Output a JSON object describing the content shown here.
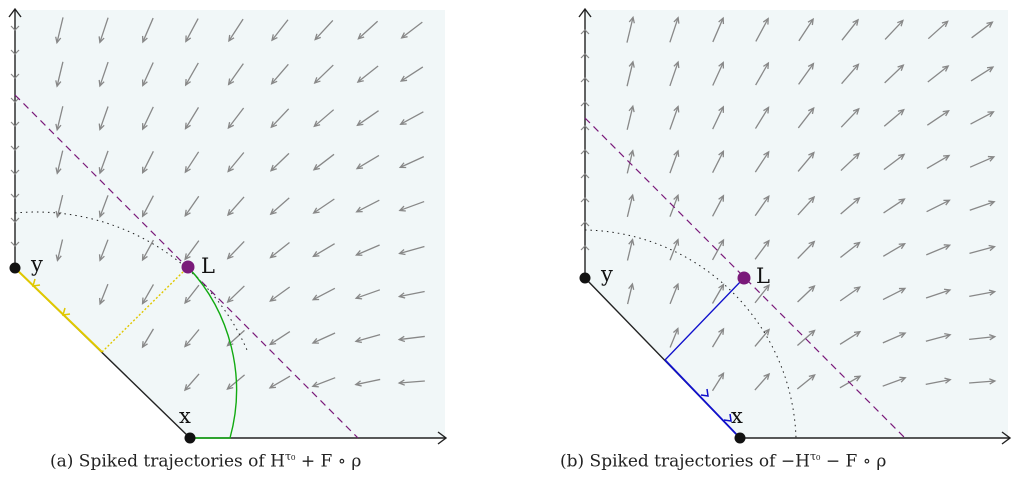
{
  "figures": [
    {
      "id": "a",
      "caption_prefix": "(a) Spiked trajectories of H",
      "caption_sup": "τ₀",
      "caption_suffix": " + F ∘ ρ",
      "labels": {
        "y": "y",
        "x": "x",
        "L": "L"
      },
      "field_direction": "down-left",
      "colors": {
        "trajectory_top": "#e0c800",
        "trajectory_bottom": "#11aa11",
        "point": "#7a1a7a",
        "dashed": "#7a1a7a",
        "arrow": "#888888",
        "bg": "#f1f7f8"
      }
    },
    {
      "id": "b",
      "caption_prefix": "(b) Spiked trajectories of −H",
      "caption_sup": "τ₀",
      "caption_suffix": " − F ∘ ρ",
      "labels": {
        "y": "y",
        "x": "x",
        "L": "L"
      },
      "field_direction": "up-right",
      "colors": {
        "trajectory": "#1010cc",
        "point": "#7a1a7a",
        "dashed": "#7a1a7a",
        "arrow": "#888888",
        "bg": "#f1f7f8"
      }
    }
  ]
}
